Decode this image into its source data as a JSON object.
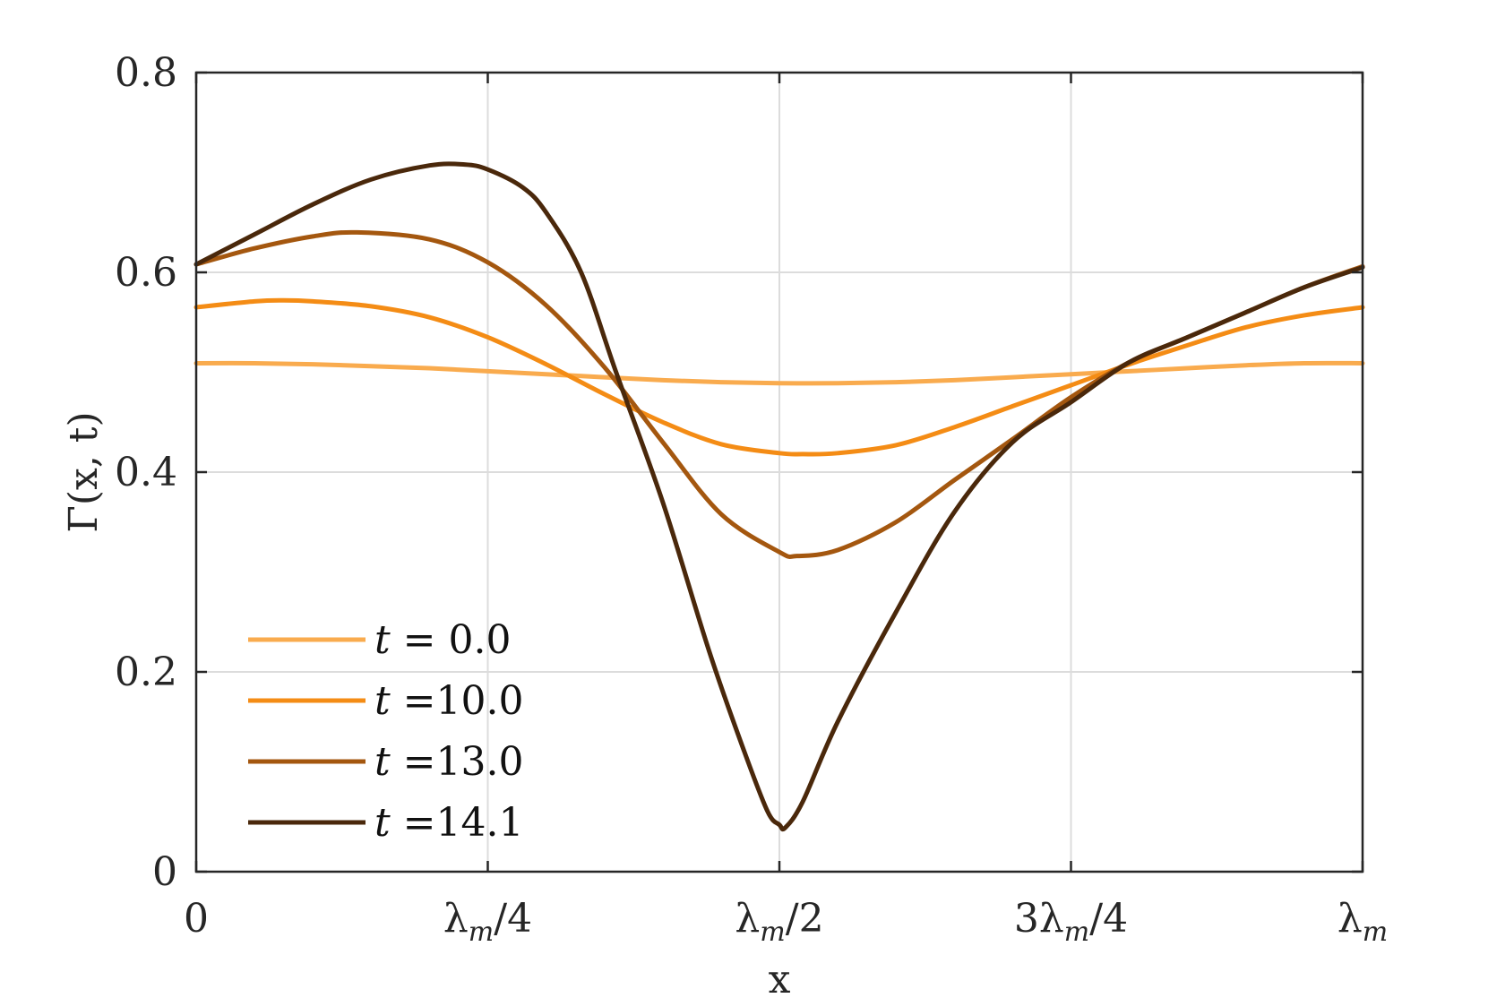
{
  "chart_data": {
    "type": "line",
    "title": "",
    "xlabel": "x",
    "ylabel": "Γ(x, t)",
    "xlim": [
      0,
      1
    ],
    "ylim": [
      0,
      0.8
    ],
    "grid": true,
    "legend_position": "bottom-left",
    "x_ticks": [
      {
        "value": 0,
        "main": "0",
        "sub": "",
        "rest": ""
      },
      {
        "value": 0.25,
        "main": "λ",
        "sub": "m",
        "rest": "/4"
      },
      {
        "value": 0.5,
        "main": "λ",
        "sub": "m",
        "rest": "/2"
      },
      {
        "value": 0.75,
        "main": "3λ",
        "sub": "m",
        "rest": "/4"
      },
      {
        "value": 1,
        "main": "λ",
        "sub": "m",
        "rest": ""
      }
    ],
    "y_ticks": [
      {
        "value": 0,
        "label": "0"
      },
      {
        "value": 0.2,
        "label": "0.2"
      },
      {
        "value": 0.4,
        "label": "0.4"
      },
      {
        "value": 0.6,
        "label": "0.6"
      },
      {
        "value": 0.8,
        "label": "0.8"
      }
    ],
    "series": [
      {
        "name": "t = 0.0",
        "var": "t",
        "value_text": " = 0.0",
        "color": "#F9AB4E",
        "x": [
          0,
          0.05,
          0.1,
          0.15,
          0.2,
          0.25,
          0.3,
          0.35,
          0.4,
          0.45,
          0.5,
          0.55,
          0.6,
          0.65,
          0.7,
          0.75,
          0.8,
          0.85,
          0.9,
          0.95,
          1
        ],
        "y": [
          0.509,
          0.509,
          0.508,
          0.506,
          0.504,
          0.501,
          0.498,
          0.495,
          0.492,
          0.49,
          0.489,
          0.489,
          0.49,
          0.492,
          0.495,
          0.498,
          0.501,
          0.504,
          0.507,
          0.509,
          0.509
        ]
      },
      {
        "name": "t =10.0",
        "var": "t",
        "value_text": " =10.0",
        "color": "#F48C15",
        "x": [
          0,
          0.05,
          0.075,
          0.1,
          0.15,
          0.2,
          0.25,
          0.3,
          0.35,
          0.4,
          0.45,
          0.5,
          0.52,
          0.55,
          0.6,
          0.65,
          0.7,
          0.75,
          0.8,
          0.85,
          0.9,
          0.95,
          1
        ],
        "y": [
          0.565,
          0.571,
          0.572,
          0.571,
          0.566,
          0.555,
          0.535,
          0.508,
          0.478,
          0.45,
          0.428,
          0.419,
          0.418,
          0.419,
          0.427,
          0.445,
          0.466,
          0.487,
          0.508,
          0.527,
          0.545,
          0.557,
          0.565
        ]
      },
      {
        "name": "t =13.0",
        "var": "t",
        "value_text": " =13.0",
        "color": "#A4570F",
        "x": [
          0,
          0.05,
          0.1,
          0.138,
          0.2,
          0.25,
          0.3,
          0.35,
          0.4,
          0.45,
          0.5,
          0.515,
          0.55,
          0.6,
          0.65,
          0.7,
          0.75,
          0.8,
          0.85,
          0.9,
          0.95,
          1
        ],
        "y": [
          0.608,
          0.624,
          0.636,
          0.64,
          0.633,
          0.61,
          0.567,
          0.505,
          0.43,
          0.358,
          0.32,
          0.316,
          0.322,
          0.35,
          0.392,
          0.433,
          0.475,
          0.51,
          0.535,
          0.56,
          0.585,
          0.606
        ]
      },
      {
        "name": "t =14.1",
        "var": "t",
        "value_text": " =14.1",
        "color": "#4A280B",
        "x": [
          0,
          0.05,
          0.1,
          0.15,
          0.2,
          0.23,
          0.25,
          0.28,
          0.3,
          0.33,
          0.36,
          0.4,
          0.44,
          0.47,
          0.49,
          0.5,
          0.505,
          0.52,
          0.55,
          0.6,
          0.65,
          0.7,
          0.75,
          0.8,
          0.85,
          0.9,
          0.95,
          1
        ],
        "y": [
          0.608,
          0.638,
          0.668,
          0.693,
          0.707,
          0.708,
          0.703,
          0.685,
          0.66,
          0.6,
          0.5,
          0.37,
          0.22,
          0.12,
          0.06,
          0.047,
          0.044,
          0.07,
          0.15,
          0.26,
          0.36,
          0.43,
          0.47,
          0.51,
          0.535,
          0.56,
          0.585,
          0.605
        ]
      }
    ]
  }
}
